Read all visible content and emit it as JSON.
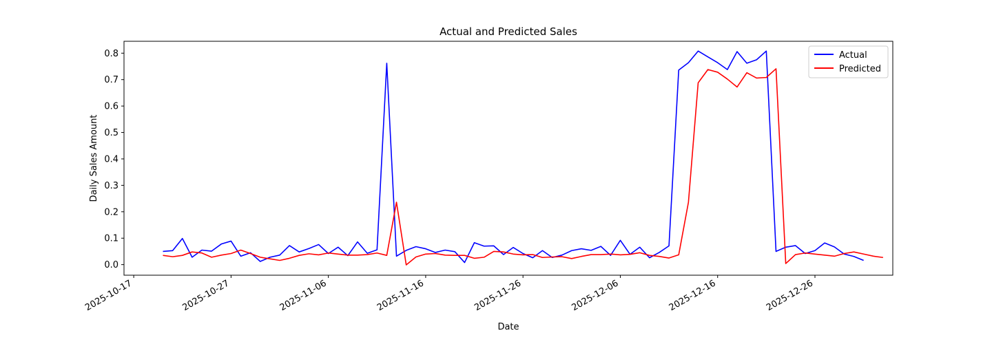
{
  "chart_data": {
    "type": "line",
    "title": "Actual and Predicted Sales",
    "xlabel": "Date",
    "ylabel": "Daily Sales Amount",
    "xlim": [
      "2025-10-16",
      "2026-01-03"
    ],
    "ylim": [
      -0.04,
      0.845
    ],
    "x_ticks": [
      "2025-10-17",
      "2025-10-27",
      "2025-11-06",
      "2025-11-16",
      "2025-11-26",
      "2025-12-06",
      "2025-12-16",
      "2025-12-26"
    ],
    "y_ticks": [
      "0.0",
      "0.1",
      "0.2",
      "0.3",
      "0.4",
      "0.5",
      "0.6",
      "0.7",
      "0.8"
    ],
    "grid": false,
    "legend_position": "top-right",
    "x_start": "2025-10-20",
    "x_step_days": 1,
    "series": [
      {
        "name": "Actual",
        "color": "#0000ff",
        "values": [
          0.05,
          0.053,
          0.099,
          0.028,
          0.055,
          0.051,
          0.078,
          0.089,
          0.032,
          0.045,
          0.012,
          0.028,
          0.036,
          0.072,
          0.048,
          0.061,
          0.076,
          0.042,
          0.066,
          0.034,
          0.086,
          0.043,
          0.056,
          0.762,
          0.032,
          0.054,
          0.068,
          0.06,
          0.046,
          0.055,
          0.049,
          0.008,
          0.083,
          0.07,
          0.071,
          0.038,
          0.065,
          0.042,
          0.026,
          0.053,
          0.027,
          0.036,
          0.053,
          0.06,
          0.054,
          0.069,
          0.035,
          0.092,
          0.039,
          0.066,
          0.026,
          0.046,
          0.071,
          0.736,
          0.764,
          0.808,
          0.786,
          0.764,
          0.738,
          0.806,
          0.762,
          0.775,
          0.808,
          0.05,
          0.066,
          0.072,
          0.042,
          0.053,
          0.082,
          0.067,
          0.04,
          0.031,
          0.016
        ]
      },
      {
        "name": "Predicted",
        "color": "#ff0000",
        "values": [
          0.035,
          0.03,
          0.035,
          0.048,
          0.044,
          0.028,
          0.036,
          0.042,
          0.055,
          0.042,
          0.028,
          0.022,
          0.016,
          0.024,
          0.035,
          0.041,
          0.037,
          0.044,
          0.04,
          0.036,
          0.036,
          0.038,
          0.044,
          0.035,
          0.236,
          -0.001,
          0.029,
          0.04,
          0.042,
          0.036,
          0.035,
          0.035,
          0.024,
          0.028,
          0.05,
          0.048,
          0.04,
          0.037,
          0.038,
          0.027,
          0.029,
          0.03,
          0.023,
          0.031,
          0.038,
          0.038,
          0.04,
          0.037,
          0.039,
          0.045,
          0.035,
          0.031,
          0.025,
          0.037,
          0.236,
          0.688,
          0.738,
          0.728,
          0.702,
          0.672,
          0.726,
          0.706,
          0.708,
          0.741,
          0.004,
          0.038,
          0.044,
          0.04,
          0.036,
          0.032,
          0.042,
          0.048,
          0.04,
          0.032,
          0.027
        ]
      }
    ]
  }
}
